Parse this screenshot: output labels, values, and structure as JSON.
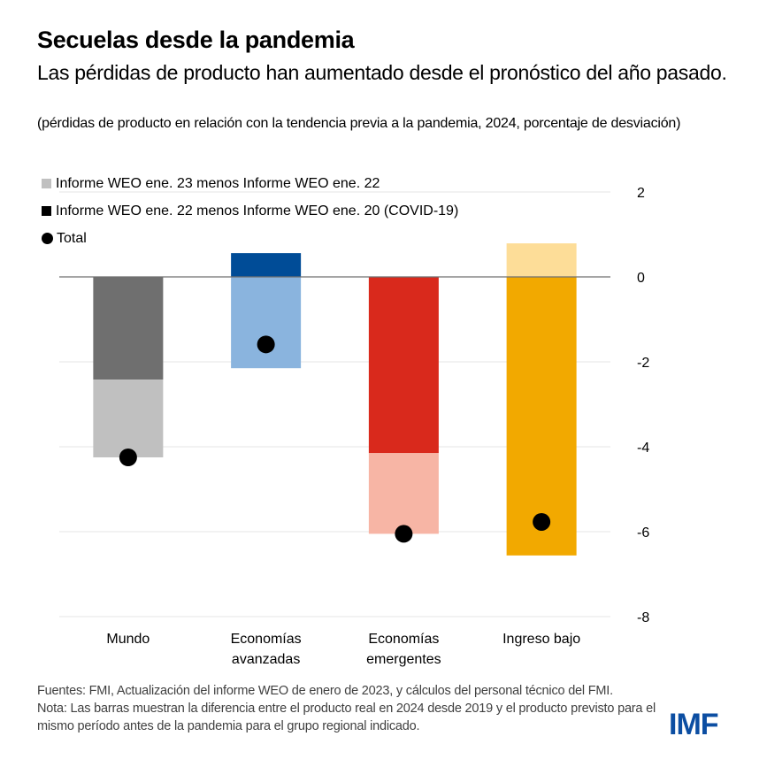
{
  "header": {
    "title": "Secuelas desde la pandemia",
    "subtitle": "Las pérdidas de producto han aumentado desde el pronóstico del año pasado.",
    "units": "(pérdidas de producto en relación con la tendencia previa a la pandemia, 2024, porcentaje de desviación)"
  },
  "legend": {
    "items": [
      {
        "label": "Informe WEO ene. 23 menos Informe WEO ene. 22",
        "color": "#c0c0c0",
        "shape": "square"
      },
      {
        "label": "Informe WEO ene. 22 menos Informe WEO ene. 20 (COVID-19)",
        "color": "#000000",
        "shape": "square"
      },
      {
        "label": "Total",
        "color": "#000000",
        "shape": "circle"
      }
    ]
  },
  "chart_data": {
    "type": "bar",
    "subtype": "stacked-with-total-marker",
    "title": "Secuelas desde la pandemia",
    "xlabel": "",
    "ylabel": "",
    "ylim": [
      -8,
      2
    ],
    "yticks": [
      2,
      0,
      -2,
      -4,
      -6,
      -8
    ],
    "ytick_labels": [
      "2",
      "0",
      "-2",
      "-4",
      "-6",
      "-8"
    ],
    "yaxis_position": "right",
    "grid": true,
    "categories": [
      "Mundo",
      "Economías avanzadas",
      "Economías emergentes",
      "Ingreso bajo"
    ],
    "category_label_lines": [
      [
        "Mundo"
      ],
      [
        "Economías",
        "avanzadas"
      ],
      [
        "Economías",
        "emergentes"
      ],
      [
        "Ingreso bajo"
      ]
    ],
    "series": [
      {
        "name": "Informe WEO ene. 22 menos Informe WEO ene. 20 (COVID-19)",
        "values": [
          -2.42,
          0.56,
          -4.15,
          -6.56
        ],
        "colors": [
          "#6f6f6f",
          "#004c97",
          "#d9291c",
          "#f2a900"
        ]
      },
      {
        "name": "Informe WEO ene. 23 menos Informe WEO ene. 22",
        "values": [
          -1.83,
          -2.15,
          -1.9,
          0.79
        ],
        "colors": [
          "#c0c0c0",
          "#8ab4de",
          "#f7b5a5",
          "#fddd98"
        ]
      },
      {
        "name": "Total",
        "values": [
          -4.25,
          -1.59,
          -6.05,
          -5.77
        ],
        "marker": "circle",
        "color": "#000000"
      }
    ],
    "legend_position": "top-left"
  },
  "footer": {
    "sources": "Fuentes: FMI, Actualización del informe WEO de enero de 2023, y cálculos del personal técnico del FMI.",
    "note": "Nota: Las barras muestran la diferencia entre el producto real en 2024 desde 2019 y el producto previsto para el mismo período antes de la pandemia para el grupo regional indicado."
  },
  "logo": {
    "text": "IMF",
    "color": "#0c4ea2"
  }
}
